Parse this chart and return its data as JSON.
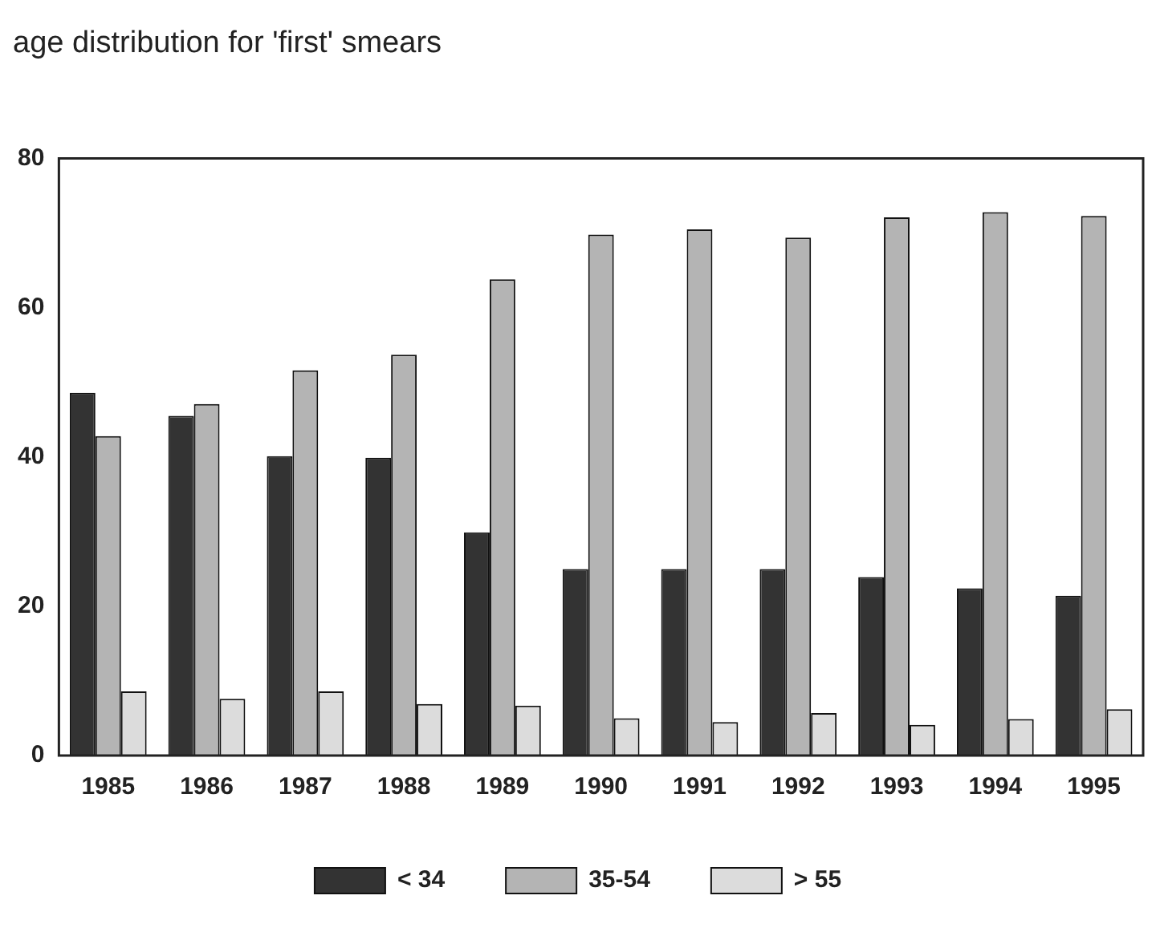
{
  "chart_data": {
    "type": "bar",
    "title": "age distribution for 'first' smears",
    "categories": [
      "1985",
      "1986",
      "1987",
      "1988",
      "1989",
      "1990",
      "1991",
      "1992",
      "1993",
      "1994",
      "1995"
    ],
    "series": [
      {
        "name": "< 34",
        "color": "#333333",
        "values": [
          48.6,
          45.5,
          40.1,
          39.9,
          29.9,
          25,
          25,
          25,
          23.9,
          22.4,
          21.4
        ]
      },
      {
        "name": "35-54",
        "color": "#b4b4b4",
        "values": [
          42.8,
          47.1,
          51.6,
          53.7,
          63.8,
          69.8,
          70.5,
          69.4,
          72.1,
          72.8,
          72.3
        ]
      },
      {
        "name": "> 55",
        "color": "#dcdcdc",
        "values": [
          8.6,
          7.6,
          8.6,
          6.9,
          6.7,
          5.0,
          4.5,
          5.7,
          4.1,
          4.9,
          6.2
        ]
      }
    ],
    "ylim": [
      0,
      80
    ],
    "yticks": [
      0,
      20,
      40,
      60,
      80
    ],
    "grid": false,
    "legend": "bottom"
  }
}
